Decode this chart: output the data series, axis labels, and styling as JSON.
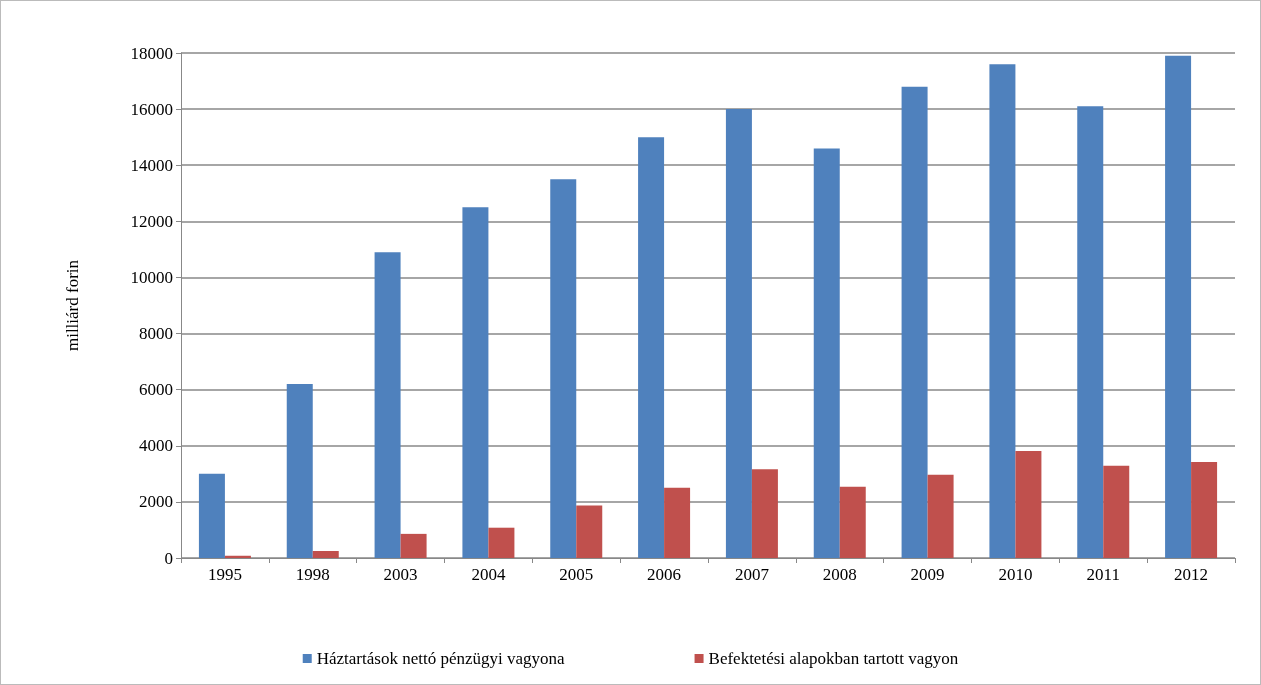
{
  "chart_data": {
    "type": "bar",
    "ylabel": "milliárd forin",
    "categories": [
      "1995",
      "1998",
      "2003",
      "2004",
      "2005",
      "2006",
      "2007",
      "2008",
      "2009",
      "2010",
      "2011",
      "2012"
    ],
    "series": [
      {
        "name": "Háztartások nettó pénzügyi vagyona",
        "color": "#4f81bd",
        "values": [
          3000,
          6200,
          10900,
          12500,
          13500,
          15000,
          16000,
          14600,
          16800,
          17600,
          16100,
          17900
        ]
      },
      {
        "name": "Befektetési alapokban tartott vagyon",
        "color": "#c0504d",
        "values": [
          80,
          250,
          860,
          1080,
          1870,
          2500,
          3160,
          2540,
          2970,
          3810,
          3290,
          3420
        ]
      }
    ],
    "ylim": [
      0,
      18000
    ],
    "yticks": [
      0,
      2000,
      4000,
      6000,
      8000,
      10000,
      12000,
      14000,
      16000,
      18000
    ],
    "grid": "y",
    "legend": "bottom"
  }
}
